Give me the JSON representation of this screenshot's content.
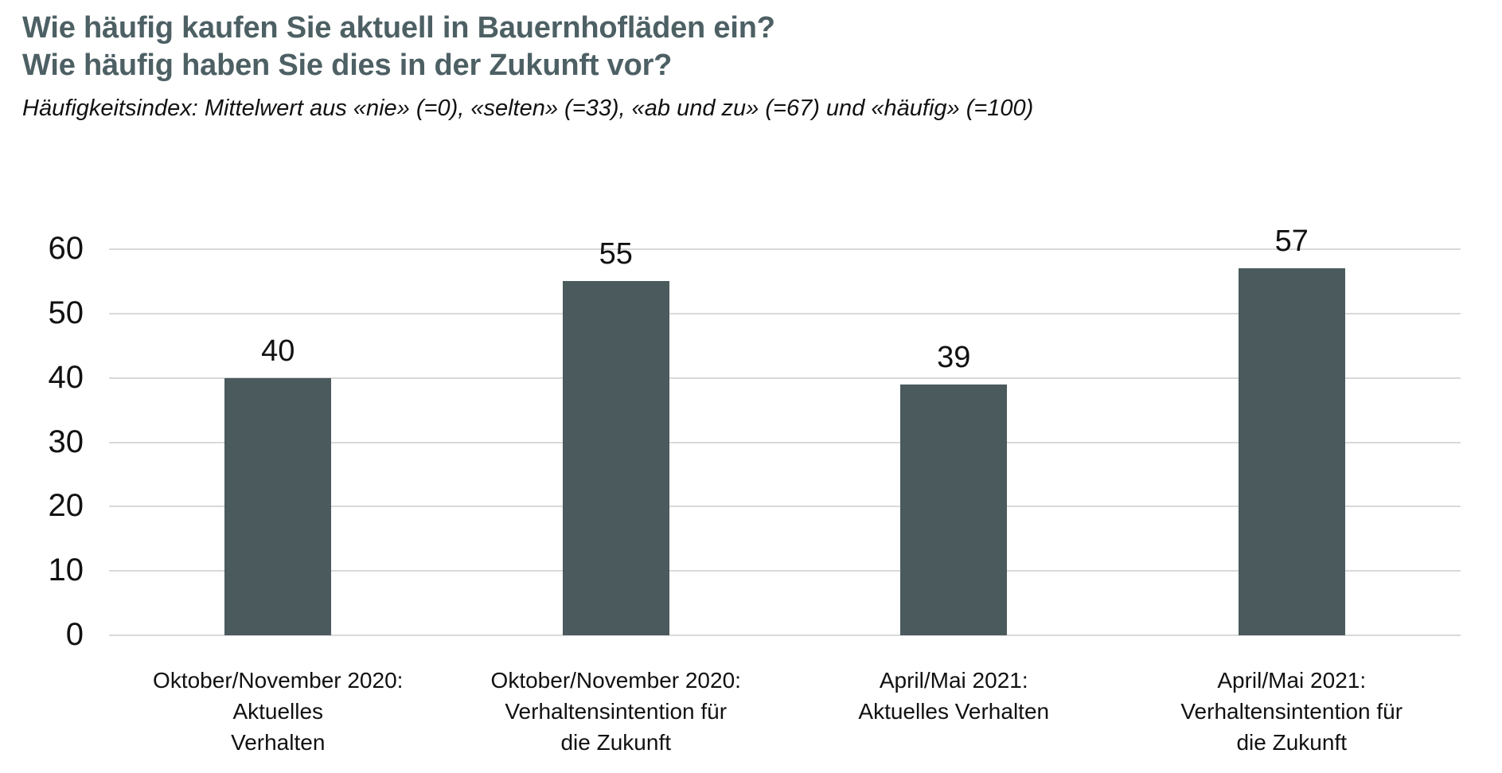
{
  "header": {
    "title_line1": "Wie häufig kaufen Sie aktuell in Bauernhofläden ein?",
    "title_line2": "Wie häufig haben Sie dies in der Zukunft vor?",
    "subtitle": "Häufigkeitsindex: Mittelwert aus «nie» (=0), «selten» (=33), «ab und zu» (=67) und «häufig» (=100)"
  },
  "colors": {
    "title": "#4d6064",
    "bar": "#4b5a5c",
    "gridline": "#d9d9d9",
    "text": "#111111",
    "background": "#ffffff"
  },
  "chart_data": {
    "type": "bar",
    "title": "Wie häufig kaufen Sie aktuell in Bauernhofläden ein? Wie häufig haben Sie dies in der Zukunft vor?",
    "subtitle": "Häufigkeitsindex: Mittelwert aus «nie» (=0), «selten» (=33), «ab und zu» (=67) und «häufig» (=100)",
    "categories": [
      "Oktober/November 2020: Aktuelles Verhalten",
      "Oktober/November 2020: Verhaltensintention für die Zukunft",
      "April/Mai 2021: Aktuelles Verhalten",
      "April/Mai 2021: Verhaltensintention für die Zukunft"
    ],
    "categories_lines": [
      [
        "Oktober/November 2020: Aktuelles",
        "Verhalten"
      ],
      [
        "Oktober/November 2020:",
        "Verhaltensintention für",
        "die Zukunft"
      ],
      [
        "April/Mai 2021:",
        "Aktuelles Verhalten"
      ],
      [
        "April/Mai 2021:",
        "Verhaltensintention für",
        "die Zukunft"
      ]
    ],
    "values": [
      40,
      55,
      39,
      57
    ],
    "value_labels": [
      "40",
      "55",
      "39",
      "57"
    ],
    "xlabel": "",
    "ylabel": "",
    "ylim": [
      0,
      60
    ],
    "yticks": [
      0,
      10,
      20,
      30,
      40,
      50,
      60
    ],
    "grid": "horizontal",
    "legend": "none",
    "bar_color": "#4b5a5c"
  }
}
